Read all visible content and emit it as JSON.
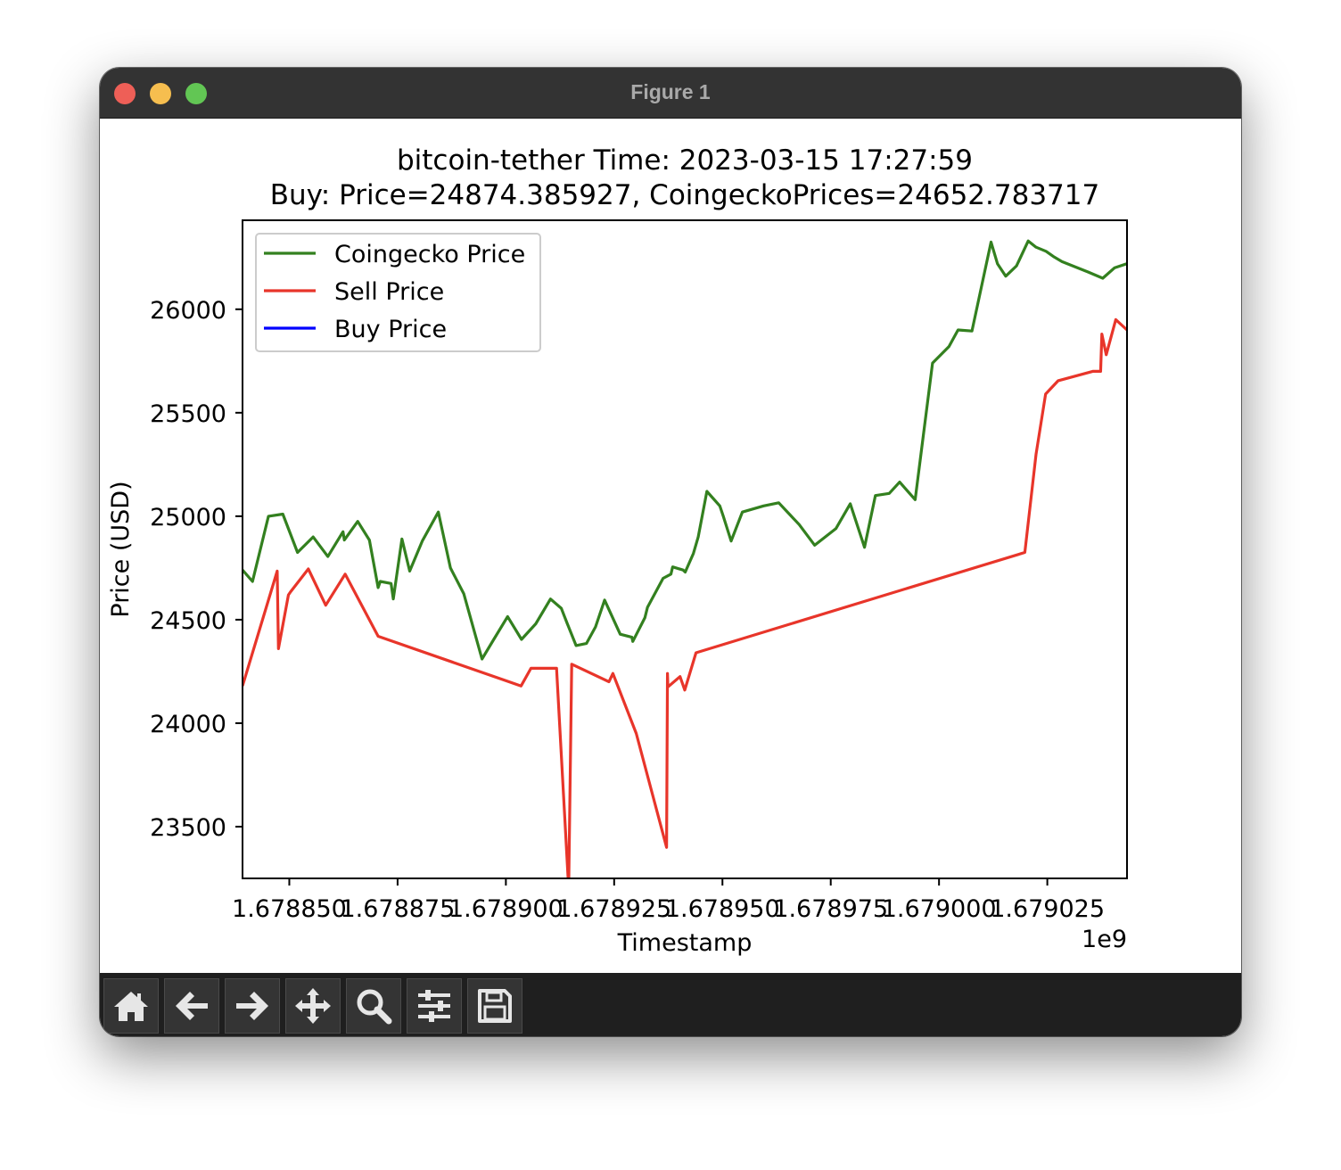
{
  "window": {
    "title": "Figure 1"
  },
  "toolbar": {
    "buttons": [
      {
        "name": "home-button",
        "icon": "home-icon"
      },
      {
        "name": "back-button",
        "icon": "arrow-left-icon"
      },
      {
        "name": "forward-button",
        "icon": "arrow-right-icon"
      },
      {
        "name": "pan-button",
        "icon": "move-icon"
      },
      {
        "name": "zoom-button",
        "icon": "search-icon"
      },
      {
        "name": "configure-subplots-button",
        "icon": "sliders-icon"
      },
      {
        "name": "save-button",
        "icon": "floppy-disk-icon"
      }
    ]
  },
  "chart_data": {
    "type": "line",
    "title": "bitcoin-tether Time: 2023-03-15 17:27:59",
    "subtitle": "Buy: Price=24874.385927, CoingeckoPrices=24652.783717",
    "xlabel": "Timestamp",
    "ylabel": "Price (USD)",
    "x_offset_label": "1e9",
    "xlim": [
      1678839200.0,
      1679043400.0
    ],
    "ylim": [
      23250,
      26430
    ],
    "xticks": [
      1678850000.0,
      1678875000.0,
      1678900000.0,
      1678925000.0,
      1678950000.0,
      1678975000.0,
      1679000000.0,
      1679025000.0
    ],
    "xtick_labels": [
      "1.678850",
      "1.678875",
      "1.678900",
      "1.678925",
      "1.678950",
      "1.678975",
      "1.679000",
      "1.679025"
    ],
    "yticks": [
      23500,
      24000,
      24500,
      25000,
      25500,
      26000
    ],
    "ytick_labels": [
      "23500",
      "24000",
      "24500",
      "25000",
      "25500",
      "26000"
    ],
    "grid": false,
    "legend": "upper-left",
    "series": [
      {
        "name": "Coingecko Price",
        "color": "#33801f",
        "x": [
          1678839200.0,
          1678841500.0,
          1678845200.0,
          1678848500.0,
          1678851900.0,
          1678855500.0,
          1678858900.0,
          1678862400.0,
          1678862700.0,
          1678865800.0,
          1678868500.0,
          1678870500.0,
          1678871000.0,
          1678873500.0,
          1678874000.0,
          1678876000.0,
          1678877800.0,
          1678880700.0,
          1678884400.0,
          1678887200.0,
          1678890300.0,
          1678894500.0,
          1678897200.0,
          1678900400.0,
          1678903600.0,
          1678906900.0,
          1678910300.0,
          1678912800.0,
          1678914200.0,
          1678916200.0,
          1678918600.0,
          1678920700.0,
          1678922800.0,
          1678926400.0,
          1678929100.0,
          1678929300.0,
          1678932100.0,
          1678932700.0,
          1678936300.0,
          1678938100.0,
          1678938500.0,
          1678940900.0,
          1678941400.0,
          1678943300.0,
          1678944400.0,
          1678946400.0,
          1678949400.0,
          1678950200.0,
          1678952000.0,
          1678954600.0,
          1678959500.0,
          1678963000.0,
          1678967700.0,
          1678971300.0,
          1678976200.0,
          1678979500.0,
          1678982800.0,
          1678985300.0,
          1678988500.0,
          1678990900.0,
          1678994500.0,
          1678998500.0,
          1679002300.0,
          1679004400.0,
          1679007600.0,
          1679012000.0,
          1679013500.0,
          1679015400.0,
          1679017900.0,
          1679020600.0,
          1679022400.0,
          1679024700.0,
          1679026400.0,
          1679028400.0,
          1679034400.0,
          1679037800.0,
          1679040500.0,
          1679043400.0
        ],
        "y": [
          24740,
          24685,
          25000,
          25010,
          24825,
          24900,
          24805,
          24925,
          24885,
          24975,
          24885,
          24655,
          24685,
          24675,
          24600,
          24890,
          24735,
          24880,
          25020,
          24750,
          24625,
          24310,
          24405,
          24515,
          24405,
          24480,
          24600,
          24555,
          24480,
          24375,
          24385,
          24465,
          24595,
          24430,
          24415,
          24395,
          24510,
          24560,
          24700,
          24720,
          24755,
          24740,
          24730,
          24820,
          24900,
          25120,
          25050,
          25000,
          24880,
          25020,
          25050,
          25065,
          24960,
          24860,
          24940,
          25060,
          24850,
          25100,
          25110,
          25165,
          25080,
          25740,
          25820,
          25900,
          25895,
          26325,
          26220,
          26160,
          26210,
          26330,
          26300,
          26280,
          26255,
          26230,
          26180,
          26150,
          26200,
          26220
        ]
      },
      {
        "name": "Sell Price",
        "color": "#e8352a",
        "x": [
          1678839200.0,
          1678847200.0,
          1678847500.0,
          1678849800.0,
          1678850300.0,
          1678854400.0,
          1678858400.0,
          1678862900.0,
          1678870500.0,
          1678903500.0,
          1678905800.0,
          1678911700.0,
          1678914500.0,
          1678915200.0,
          1678923800.0,
          1678924700.0,
          1678930100.0,
          1678937100.0,
          1678937300.0,
          1678937400.0,
          1678940200.0,
          1678941300.0,
          1678943900.0,
          1679019800.0,
          1679022400.0,
          1679024600.0,
          1679027500.0,
          1679035500.0,
          1679037300.0,
          1679037600.0,
          1679038600.0,
          1679040800.0,
          1679043400.0
        ],
        "y": [
          24180,
          24735,
          24360,
          24620,
          24635,
          24745,
          24570,
          24720,
          24420,
          24180,
          24265,
          24265,
          23200,
          24285,
          24200,
          24240,
          23950,
          23400,
          24240,
          24175,
          24225,
          24160,
          24340,
          24825,
          25300,
          25590,
          25655,
          25700,
          25700,
          25880,
          25780,
          25950,
          25900
        ]
      },
      {
        "name": "Buy Price",
        "color": "#0000ff",
        "x": [],
        "y": []
      }
    ]
  }
}
